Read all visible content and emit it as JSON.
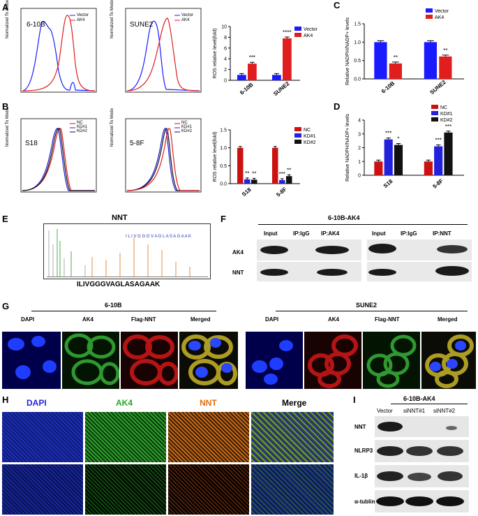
{
  "panel_letters": [
    "A",
    "B",
    "C",
    "D",
    "E",
    "F",
    "G",
    "H",
    "I"
  ],
  "colors": {
    "blue": "#1a1aff",
    "red": "#e01e1e",
    "black": "#111111",
    "nc": "#cc1111",
    "kd1": "#2222dd",
    "kd2": "#111111"
  },
  "flow": {
    "y_label": "Normalized To Mode",
    "a1": {
      "name": "6-10B",
      "legend": [
        "Vector",
        "AK4"
      ]
    },
    "a2": {
      "name": "SUNE2",
      "legend": [
        "Vector",
        "AK4"
      ]
    },
    "b1": {
      "name": "S18",
      "legend": [
        "NC",
        "KD#1",
        "KD#2"
      ]
    },
    "b2": {
      "name": "5-8F",
      "legend": [
        "NC",
        "KD#1",
        "KD#2"
      ]
    }
  },
  "chart_data": [
    {
      "id": "A-bar",
      "type": "bar",
      "ylabel": "ROS relative level(fold)",
      "ylim": [
        0,
        10
      ],
      "yticks": [
        0,
        2,
        4,
        6,
        8,
        10
      ],
      "categories": [
        "6-10B",
        "SUNE2"
      ],
      "series": [
        {
          "name": "Vector",
          "values": [
            1.0,
            1.0
          ]
        },
        {
          "name": "AK4",
          "values": [
            3.1,
            7.8
          ]
        }
      ],
      "annotations": [
        "***",
        "****"
      ]
    },
    {
      "id": "C",
      "type": "bar",
      "ylabel": "Relative NADPH/NADP+ levels",
      "ylim": [
        0,
        1.5
      ],
      "yticks": [
        0.0,
        0.5,
        1.0,
        1.5
      ],
      "categories": [
        "6-10B",
        "SUNE2"
      ],
      "series": [
        {
          "name": "Vector",
          "values": [
            1.0,
            1.0
          ]
        },
        {
          "name": "AK4",
          "values": [
            0.42,
            0.61
          ]
        }
      ],
      "annotations": [
        "**",
        "**"
      ]
    },
    {
      "id": "B-bar",
      "type": "bar",
      "ylabel": "ROS relative level(fold)",
      "ylim": [
        0,
        1.5
      ],
      "yticks": [
        0.0,
        0.5,
        1.0,
        1.5
      ],
      "categories": [
        "S18",
        "5-8F"
      ],
      "series": [
        {
          "name": "NC",
          "values": [
            1.0,
            1.0
          ]
        },
        {
          "name": "KD#1",
          "values": [
            0.12,
            0.1
          ]
        },
        {
          "name": "KD#2",
          "values": [
            0.11,
            0.21
          ]
        }
      ],
      "annotations": [
        [
          "**",
          "**"
        ],
        [
          "***",
          "**"
        ]
      ]
    },
    {
      "id": "D",
      "type": "bar",
      "ylabel": "Relative NADPH/NADP+ levels",
      "ylim": [
        0,
        4
      ],
      "yticks": [
        0,
        1,
        2,
        3,
        4
      ],
      "categories": [
        "S18",
        "5-8F"
      ],
      "series": [
        {
          "name": "NC",
          "values": [
            1.0,
            1.0
          ]
        },
        {
          "name": "KD#1",
          "values": [
            2.6,
            2.1
          ]
        },
        {
          "name": "KD#2",
          "values": [
            2.2,
            3.1
          ]
        }
      ],
      "annotations": [
        [
          "***",
          "*"
        ],
        [
          "***",
          "***"
        ]
      ]
    }
  ],
  "panelE": {
    "title": "NNT",
    "sequence": "ILIVGGGVAGLASAGAAK",
    "spectrum_seq": "I L I V G G G V A G L A S A G A A K"
  },
  "panelF": {
    "title": "6-10B-AK4",
    "cols_left": [
      "Input",
      "IP:IgG",
      "IP:AK4"
    ],
    "cols_right": [
      "Input",
      "IP:IgG",
      "IP:NNT"
    ],
    "rows": [
      "AK4",
      "NNT"
    ]
  },
  "panelG": {
    "left_title": "6-10B",
    "right_title": "SUNE2",
    "left_cols": [
      "DAPI",
      "AK4",
      "Flag-NNT",
      "Merged"
    ],
    "right_cols": [
      "DAPI",
      "AK4",
      "Flag-NNT",
      "Merged"
    ]
  },
  "panelH": {
    "cols": [
      "DAPI",
      "AK4",
      "NNT",
      "Merge"
    ]
  },
  "panelI": {
    "title": "6-10B-AK4",
    "cols": [
      "Vector",
      "siNNT#1",
      "siNNT#2"
    ],
    "rows": [
      "NNT",
      "NLRP3",
      "IL-1β",
      "α-tublin"
    ]
  }
}
